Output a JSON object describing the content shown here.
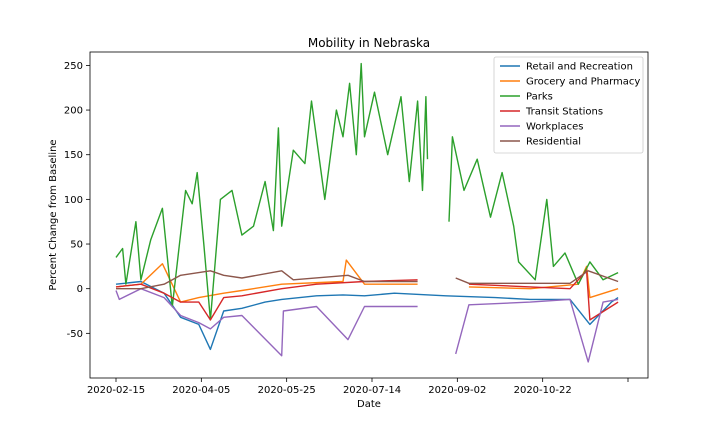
{
  "chart_data": {
    "type": "line",
    "title": "Mobility in Nebraska",
    "xlabel": "Date",
    "ylabel": "Percent Change from Baseline",
    "x_range": [
      "2020-02-15",
      "2020-12-20"
    ],
    "ylim": [
      -100,
      265
    ],
    "x_ticks": [
      "2020-02-15",
      "2020-04-05",
      "2020-05-25",
      "2020-07-14",
      "2020-09-02",
      "2020-10-22",
      ""
    ],
    "y_ticks": [
      -50,
      0,
      50,
      100,
      150,
      200,
      250
    ],
    "grid": false,
    "legend_position": "top-right",
    "data_gaps": [
      [
        "2020-08-21",
        "2020-09-03"
      ]
    ],
    "series": [
      {
        "name": "Retail and Recreation",
        "color": "#1f77b4",
        "points": [
          [
            "2020-02-15",
            5
          ],
          [
            "2020-03-01",
            8
          ],
          [
            "2020-03-15",
            -5
          ],
          [
            "2020-03-25",
            -32
          ],
          [
            "2020-04-05",
            -40
          ],
          [
            "2020-04-12",
            -68
          ],
          [
            "2020-04-20",
            -25
          ],
          [
            "2020-05-01",
            -22
          ],
          [
            "2020-05-15",
            -15
          ],
          [
            "2020-05-25",
            -12
          ],
          [
            "2020-06-15",
            -8
          ],
          [
            "2020-07-01",
            -7
          ],
          [
            "2020-07-14",
            -8
          ],
          [
            "2020-08-01",
            -5
          ],
          [
            "2020-09-01",
            -8
          ],
          [
            "2020-10-01",
            -10
          ],
          [
            "2020-10-22",
            -12
          ],
          [
            "2020-11-15",
            -12
          ],
          [
            "2020-11-27",
            -40
          ],
          [
            "2020-12-10",
            -15
          ],
          [
            "2020-12-14",
            -10
          ]
        ]
      },
      {
        "name": "Grocery and Pharmacy",
        "color": "#ff7f0e",
        "points": [
          [
            "2020-02-15",
            2
          ],
          [
            "2020-03-01",
            5
          ],
          [
            "2020-03-14",
            28
          ],
          [
            "2020-03-25",
            -15
          ],
          [
            "2020-04-05",
            -10
          ],
          [
            "2020-04-20",
            -5
          ],
          [
            "2020-05-01",
            -2
          ],
          [
            "2020-05-25",
            5
          ],
          [
            "2020-07-01",
            8
          ],
          [
            "2020-07-03",
            32
          ],
          [
            "2020-07-14",
            5
          ],
          [
            "2020-08-15",
            5
          ],
          [
            "2020-09-15",
            2
          ],
          [
            "2020-10-22",
            0
          ],
          [
            "2020-11-20",
            5
          ],
          [
            "2020-11-25",
            25
          ],
          [
            "2020-11-27",
            -10
          ],
          [
            "2020-12-14",
            0
          ]
        ]
      },
      {
        "name": "Parks",
        "color": "#2ca02c",
        "points": [
          [
            "2020-02-15",
            35
          ],
          [
            "2020-02-19",
            45
          ],
          [
            "2020-02-21",
            5
          ],
          [
            "2020-02-27",
            75
          ],
          [
            "2020-03-01",
            10
          ],
          [
            "2020-03-07",
            55
          ],
          [
            "2020-03-14",
            90
          ],
          [
            "2020-03-20",
            -20
          ],
          [
            "2020-03-28",
            110
          ],
          [
            "2020-04-01",
            95
          ],
          [
            "2020-04-04",
            130
          ],
          [
            "2020-04-08",
            50
          ],
          [
            "2020-04-12",
            -35
          ],
          [
            "2020-04-18",
            100
          ],
          [
            "2020-04-25",
            110
          ],
          [
            "2020-05-01",
            60
          ],
          [
            "2020-05-08",
            70
          ],
          [
            "2020-05-15",
            120
          ],
          [
            "2020-05-20",
            65
          ],
          [
            "2020-05-23",
            180
          ],
          [
            "2020-05-25",
            70
          ],
          [
            "2020-06-01",
            155
          ],
          [
            "2020-06-08",
            140
          ],
          [
            "2020-06-12",
            210
          ],
          [
            "2020-06-20",
            100
          ],
          [
            "2020-06-27",
            200
          ],
          [
            "2020-07-01",
            170
          ],
          [
            "2020-07-05",
            230
          ],
          [
            "2020-07-09",
            150
          ],
          [
            "2020-07-12",
            252
          ],
          [
            "2020-07-14",
            170
          ],
          [
            "2020-07-20",
            220
          ],
          [
            "2020-07-28",
            150
          ],
          [
            "2020-08-05",
            215
          ],
          [
            "2020-08-10",
            120
          ],
          [
            "2020-08-15",
            210
          ],
          [
            "2020-08-18",
            110
          ],
          [
            "2020-08-20",
            215
          ],
          [
            "2020-08-21",
            145
          ],
          [
            "2020-09-03",
            75
          ],
          [
            "2020-09-05",
            170
          ],
          [
            "2020-09-12",
            110
          ],
          [
            "2020-09-20",
            145
          ],
          [
            "2020-09-28",
            80
          ],
          [
            "2020-10-05",
            130
          ],
          [
            "2020-10-12",
            70
          ],
          [
            "2020-10-15",
            30
          ],
          [
            "2020-10-25",
            10
          ],
          [
            "2020-11-01",
            100
          ],
          [
            "2020-11-05",
            25
          ],
          [
            "2020-11-12",
            40
          ],
          [
            "2020-11-20",
            5
          ],
          [
            "2020-11-27",
            30
          ],
          [
            "2020-12-05",
            10
          ],
          [
            "2020-12-14",
            18
          ]
        ]
      },
      {
        "name": "Transit Stations",
        "color": "#d62728",
        "points": [
          [
            "2020-02-15",
            2
          ],
          [
            "2020-03-01",
            5
          ],
          [
            "2020-03-15",
            -5
          ],
          [
            "2020-03-25",
            -15
          ],
          [
            "2020-04-05",
            -15
          ],
          [
            "2020-04-12",
            -35
          ],
          [
            "2020-04-20",
            -10
          ],
          [
            "2020-05-01",
            -8
          ],
          [
            "2020-05-25",
            0
          ],
          [
            "2020-06-15",
            5
          ],
          [
            "2020-07-14",
            8
          ],
          [
            "2020-08-15",
            10
          ],
          [
            "2020-09-15",
            5
          ],
          [
            "2020-10-22",
            2
          ],
          [
            "2020-11-15",
            0
          ],
          [
            "2020-11-25",
            20
          ],
          [
            "2020-11-27",
            -35
          ],
          [
            "2020-12-14",
            -15
          ]
        ]
      },
      {
        "name": "Workplaces",
        "color": "#9467bd",
        "points": [
          [
            "2020-02-15",
            -2
          ],
          [
            "2020-02-17",
            -12
          ],
          [
            "2020-03-01",
            0
          ],
          [
            "2020-03-15",
            -10
          ],
          [
            "2020-03-25",
            -30
          ],
          [
            "2020-04-05",
            -38
          ],
          [
            "2020-04-12",
            -45
          ],
          [
            "2020-04-20",
            -32
          ],
          [
            "2020-05-01",
            -30
          ],
          [
            "2020-05-25",
            -75
          ],
          [
            "2020-05-26",
            -25
          ],
          [
            "2020-06-15",
            -20
          ],
          [
            "2020-07-04",
            -57
          ],
          [
            "2020-07-14",
            -20
          ],
          [
            "2020-08-15",
            -20
          ],
          [
            "2020-09-07",
            -73
          ],
          [
            "2020-09-15",
            -18
          ],
          [
            "2020-10-22",
            -15
          ],
          [
            "2020-11-15",
            -12
          ],
          [
            "2020-11-26",
            -82
          ],
          [
            "2020-12-05",
            -15
          ],
          [
            "2020-12-14",
            -12
          ]
        ]
      },
      {
        "name": "Residential",
        "color": "#8c564b",
        "points": [
          [
            "2020-02-15",
            0
          ],
          [
            "2020-03-01",
            0
          ],
          [
            "2020-03-15",
            5
          ],
          [
            "2020-03-25",
            15
          ],
          [
            "2020-04-05",
            18
          ],
          [
            "2020-04-12",
            20
          ],
          [
            "2020-04-20",
            15
          ],
          [
            "2020-05-01",
            12
          ],
          [
            "2020-05-25",
            20
          ],
          [
            "2020-06-01",
            10
          ],
          [
            "2020-07-04",
            15
          ],
          [
            "2020-07-14",
            8
          ],
          [
            "2020-08-15",
            8
          ],
          [
            "2020-09-07",
            12
          ],
          [
            "2020-09-15",
            6
          ],
          [
            "2020-10-22",
            6
          ],
          [
            "2020-11-15",
            6
          ],
          [
            "2020-11-26",
            20
          ],
          [
            "2020-12-14",
            8
          ]
        ]
      }
    ]
  }
}
